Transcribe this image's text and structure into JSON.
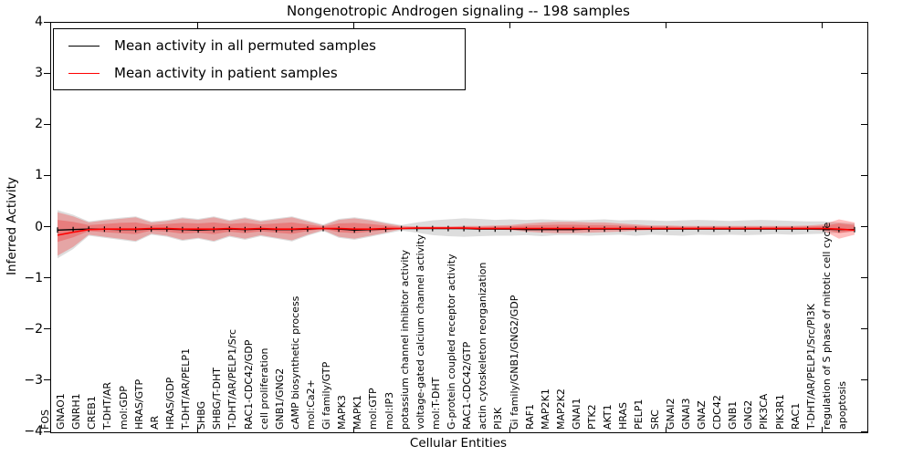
{
  "title": "Nongenotropic Androgen signaling -- 198 samples",
  "legend": {
    "items": [
      {
        "label": "Mean activity in all permuted samples",
        "color": "#000000"
      },
      {
        "label": "Mean activity in patient samples",
        "color": "#ff0000"
      }
    ]
  },
  "chart_data": {
    "type": "line",
    "title": "Nongenotropic Androgen signaling -- 198 samples",
    "xlabel": "Cellular Entities",
    "ylabel": "Inferred Activity",
    "ylim": [
      -4,
      4
    ],
    "yticks": [
      4,
      3,
      2,
      1,
      0,
      -1,
      -2,
      -3,
      -4
    ],
    "grid": false,
    "legend_position": "upper left",
    "categories": [
      "FOS",
      "GNAO1",
      "GNRH1",
      "CREB1",
      "T-DHT/AR",
      "mol:GDP",
      "HRAS/GTP",
      "AR",
      "HRAS/GDP",
      "T-DHT/AR/PELP1",
      "SHBG",
      "SHBG/T-DHT",
      "T-DHT/AR/PELP1/Src",
      "RAC1-CDC42/GDP",
      "cell proliferation",
      "GNB1/GNG2",
      "cAMP biosynthetic process",
      "mol:Ca2+",
      "Gi family/GTP",
      "MAPK3",
      "MAPK1",
      "mol:GTP",
      "mol:IP3",
      "potassium channel inhibitor activity",
      "voltage-gated calcium channel activity",
      "mol:T-DHT",
      "G-protein coupled receptor activity",
      "RAC1-CDC42/GTP",
      "actin cytoskeleton reorganization",
      "PI3K",
      "Gi family/GNB1/GNG2/GDP",
      "RAF1",
      "MAP2K1",
      "MAP2K2",
      "GNAI1",
      "PTK2",
      "AKT1",
      "HRAS",
      "PELP1",
      "SRC",
      "GNAI2",
      "GNAI3",
      "GNAZ",
      "CDC42",
      "GNB1",
      "GNG2",
      "PIK3CA",
      "PIK3R1",
      "RAC1",
      "T-DHT/AR/PELP1/Src/PI3K",
      "regulation of S phase of mitotic cell cycle",
      "apoptosis"
    ],
    "series": [
      {
        "name": "Mean activity in all permuted samples",
        "color": "#000000",
        "values": [
          -0.05,
          -0.04,
          -0.03,
          -0.03,
          -0.04,
          -0.04,
          -0.03,
          -0.03,
          -0.04,
          -0.05,
          -0.04,
          -0.03,
          -0.04,
          -0.03,
          -0.04,
          -0.04,
          -0.03,
          -0.02,
          -0.03,
          -0.05,
          -0.04,
          -0.03,
          -0.02,
          -0.02,
          -0.02,
          -0.02,
          -0.02,
          -0.03,
          -0.03,
          -0.03,
          -0.04,
          -0.04,
          -0.04,
          -0.04,
          -0.03,
          -0.03,
          -0.03,
          -0.03,
          -0.03,
          -0.03,
          -0.03,
          -0.03,
          -0.03,
          -0.03,
          -0.03,
          -0.03,
          -0.03,
          -0.03,
          -0.03,
          -0.03,
          -0.04,
          -0.04
        ]
      },
      {
        "name": "Mean activity in patient samples",
        "color": "#ff0000",
        "values": [
          -0.15,
          -0.09,
          -0.04,
          -0.03,
          -0.03,
          -0.03,
          -0.02,
          -0.02,
          -0.03,
          -0.03,
          -0.03,
          -0.02,
          -0.03,
          -0.02,
          -0.03,
          -0.03,
          -0.02,
          -0.02,
          -0.02,
          -0.03,
          -0.03,
          -0.02,
          -0.02,
          -0.01,
          -0.01,
          -0.01,
          -0.01,
          -0.02,
          -0.02,
          -0.02,
          -0.02,
          -0.02,
          -0.02,
          -0.02,
          -0.02,
          -0.02,
          -0.02,
          -0.02,
          -0.02,
          -0.02,
          -0.02,
          -0.02,
          -0.02,
          -0.02,
          -0.02,
          -0.02,
          -0.02,
          -0.02,
          -0.02,
          -0.02,
          -0.03,
          -0.05
        ]
      }
    ],
    "bands": [
      {
        "name": "permuted-std-band",
        "color": "#9e9e9e",
        "opacity": 0.35,
        "upper": [
          0.34,
          0.25,
          0.12,
          0.16,
          0.19,
          0.22,
          0.12,
          0.15,
          0.2,
          0.17,
          0.22,
          0.15,
          0.2,
          0.14,
          0.18,
          0.22,
          0.14,
          0.06,
          0.17,
          0.2,
          0.16,
          0.1,
          0.05,
          0.1,
          0.14,
          0.16,
          0.18,
          0.17,
          0.15,
          0.16,
          0.15,
          0.16,
          0.15,
          0.14,
          0.15,
          0.16,
          0.14,
          0.15,
          0.14,
          0.13,
          0.14,
          0.15,
          0.14,
          0.13,
          0.14,
          0.15,
          0.14,
          0.13,
          0.12,
          0.12,
          0.1,
          0.08
        ],
        "lower": [
          -0.6,
          -0.42,
          -0.16,
          -0.2,
          -0.24,
          -0.28,
          -0.14,
          -0.18,
          -0.26,
          -0.22,
          -0.28,
          -0.18,
          -0.24,
          -0.17,
          -0.22,
          -0.27,
          -0.16,
          -0.07,
          -0.2,
          -0.24,
          -0.18,
          -0.12,
          -0.06,
          -0.1,
          -0.15,
          -0.17,
          -0.18,
          -0.17,
          -0.16,
          -0.16,
          -0.15,
          -0.17,
          -0.15,
          -0.15,
          -0.16,
          -0.15,
          -0.14,
          -0.16,
          -0.14,
          -0.15,
          -0.16,
          -0.14,
          -0.15,
          -0.14,
          -0.15,
          -0.14,
          -0.13,
          -0.14,
          -0.13,
          -0.12,
          -0.1,
          -0.08
        ]
      },
      {
        "name": "patient-std-outer-band",
        "color": "#ff0000",
        "opacity": 0.25,
        "upper": [
          0.3,
          0.22,
          0.1,
          0.14,
          0.17,
          0.2,
          0.1,
          0.13,
          0.18,
          0.15,
          0.2,
          0.13,
          0.18,
          0.12,
          0.16,
          0.2,
          0.12,
          0.04,
          0.15,
          0.18,
          0.14,
          0.08,
          0.03,
          0.02,
          0.02,
          0.02,
          0.03,
          0.03,
          0.04,
          0.05,
          0.08,
          0.1,
          0.11,
          0.11,
          0.1,
          0.1,
          0.08,
          0.06,
          0.04,
          0.04,
          0.03,
          0.03,
          0.03,
          0.03,
          0.03,
          0.03,
          0.03,
          0.03,
          0.04,
          0.06,
          0.16,
          0.1
        ],
        "lower": [
          -0.55,
          -0.38,
          -0.14,
          -0.18,
          -0.22,
          -0.26,
          -0.12,
          -0.16,
          -0.24,
          -0.2,
          -0.26,
          -0.16,
          -0.22,
          -0.15,
          -0.2,
          -0.25,
          -0.14,
          -0.05,
          -0.18,
          -0.22,
          -0.16,
          -0.1,
          -0.03,
          -0.02,
          -0.02,
          -0.02,
          -0.03,
          -0.04,
          -0.04,
          -0.05,
          -0.08,
          -0.1,
          -0.11,
          -0.11,
          -0.1,
          -0.09,
          -0.08,
          -0.06,
          -0.05,
          -0.04,
          -0.04,
          -0.03,
          -0.03,
          -0.03,
          -0.03,
          -0.03,
          -0.03,
          -0.04,
          -0.04,
          -0.06,
          -0.22,
          -0.14
        ]
      },
      {
        "name": "patient-std-inner-band",
        "color": "#ee2222",
        "opacity": 0.3,
        "upper": [
          0.15,
          0.11,
          0.05,
          0.07,
          0.09,
          0.1,
          0.05,
          0.07,
          0.09,
          0.08,
          0.1,
          0.07,
          0.09,
          0.06,
          0.08,
          0.1,
          0.06,
          0.02,
          0.08,
          0.09,
          0.07,
          0.04,
          0.015,
          0.01,
          0.01,
          0.01,
          0.015,
          0.015,
          0.02,
          0.025,
          0.04,
          0.05,
          0.055,
          0.055,
          0.05,
          0.05,
          0.04,
          0.03,
          0.02,
          0.02,
          0.015,
          0.015,
          0.015,
          0.015,
          0.015,
          0.015,
          0.015,
          0.015,
          0.02,
          0.03,
          0.08,
          0.05
        ],
        "lower": [
          -0.28,
          -0.19,
          -0.07,
          -0.09,
          -0.11,
          -0.13,
          -0.06,
          -0.08,
          -0.12,
          -0.1,
          -0.13,
          -0.08,
          -0.11,
          -0.075,
          -0.1,
          -0.125,
          -0.07,
          -0.025,
          -0.09,
          -0.11,
          -0.08,
          -0.05,
          -0.015,
          -0.01,
          -0.01,
          -0.01,
          -0.015,
          -0.02,
          -0.02,
          -0.025,
          -0.04,
          -0.05,
          -0.055,
          -0.055,
          -0.05,
          -0.045,
          -0.04,
          -0.03,
          -0.025,
          -0.02,
          -0.02,
          -0.015,
          -0.015,
          -0.015,
          -0.015,
          -0.015,
          -0.015,
          -0.02,
          -0.02,
          -0.03,
          -0.11,
          -0.07
        ]
      }
    ]
  }
}
